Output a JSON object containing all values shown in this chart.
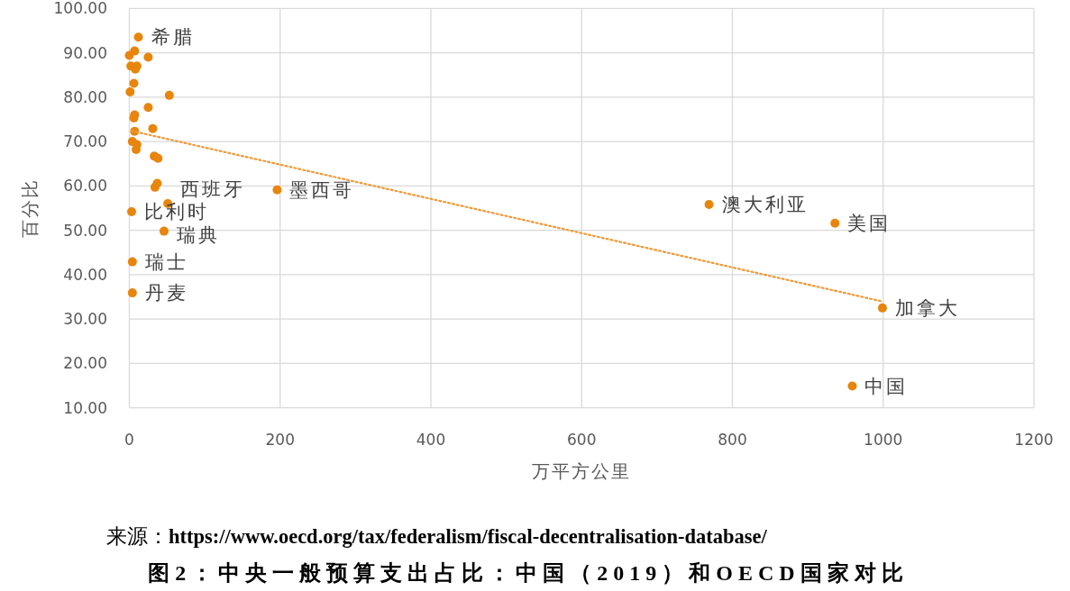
{
  "chart_data": {
    "type": "scatter",
    "title": "图2：中央一般预算支出占比：中国（2019）和OECD国家对比",
    "xlabel": "万平方公里",
    "ylabel": "百分比",
    "xlim": [
      0,
      1200
    ],
    "xticks": [
      0,
      200,
      400,
      600,
      800,
      1000,
      1200
    ],
    "ylim": [
      10,
      100
    ],
    "yticks": [
      {
        "value": 10,
        "label": "10.00"
      },
      {
        "value": 20,
        "label": "20.00"
      },
      {
        "value": 30,
        "label": "30.00"
      },
      {
        "value": 40,
        "label": "40.00"
      },
      {
        "value": 50,
        "label": "50.00"
      },
      {
        "value": 60,
        "label": "60.00"
      },
      {
        "value": 70,
        "label": "70.00"
      },
      {
        "value": 80,
        "label": "80.00"
      },
      {
        "value": 90,
        "label": "90.00"
      },
      {
        "value": 100,
        "label": "100.00"
      }
    ],
    "grid": true,
    "marker": "circle",
    "series": [
      {
        "type": "scatter",
        "color": "#e8850c",
        "x": [
          12,
          7,
          0,
          25,
          2,
          10,
          8,
          6,
          1,
          53,
          25,
          7,
          6,
          31,
          7,
          4,
          10,
          9,
          33,
          38,
          37,
          34,
          51,
          3,
          46,
          4,
          4,
          196,
          769,
          936,
          999,
          959
        ],
        "values": [
          93.5,
          90.4,
          89.4,
          89.0,
          87.0,
          87.0,
          86.3,
          83.1,
          81.2,
          80.4,
          77.7,
          76.0,
          75.3,
          72.9,
          72.3,
          70.0,
          69.3,
          68.2,
          66.7,
          66.2,
          60.6,
          59.7,
          56.0,
          54.2,
          49.8,
          42.9,
          35.9,
          59.1,
          55.8,
          51.6,
          32.5,
          14.9
        ]
      },
      {
        "type": "line",
        "color": "#ee9a3a",
        "line_style": "dotted",
        "marker": "none",
        "x": [
          3,
          998
        ],
        "values": [
          72.4,
          34.0
        ]
      }
    ],
    "annotations": [
      {
        "text": "希腊",
        "x": 12,
        "y": 93.5
      },
      {
        "text": "比利时",
        "x": 3,
        "y": 54.2
      },
      {
        "text": "西班牙",
        "x": 51,
        "y": 56.0
      },
      {
        "text": "瑞典",
        "x": 46,
        "y": 49.8
      },
      {
        "text": "瑞士",
        "x": 4,
        "y": 42.9
      },
      {
        "text": "丹麦",
        "x": 4,
        "y": 35.9
      },
      {
        "text": "墨西哥",
        "x": 196,
        "y": 59.1
      },
      {
        "text": "澳大利亚",
        "x": 769,
        "y": 55.8
      },
      {
        "text": "美国",
        "x": 936,
        "y": 51.6
      },
      {
        "text": "加拿大",
        "x": 999,
        "y": 32.5
      },
      {
        "text": "中国",
        "x": 959,
        "y": 14.9
      },
      "来源：**https://www.oecd.org/tax/federalism/fiscal-decentralisation-database/**"
    ]
  }
}
